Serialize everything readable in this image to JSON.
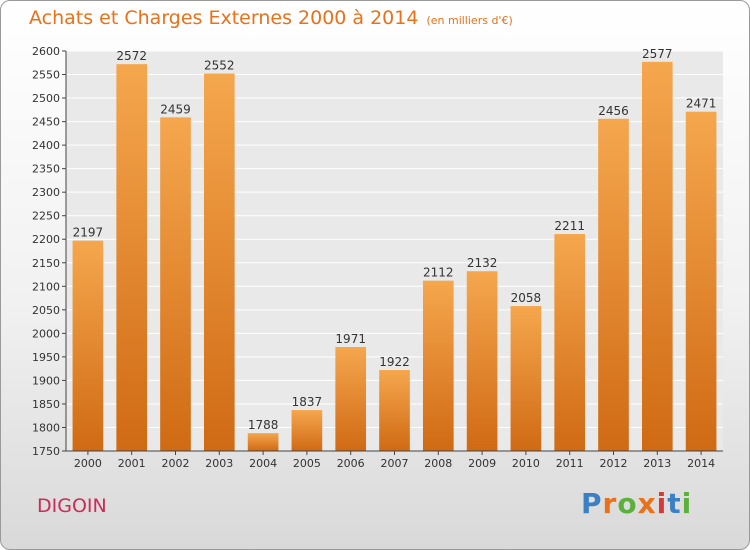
{
  "header": {
    "title": "Achats et Charges Externes 2000 à 2014",
    "subtitle": "(en milliers d'€)"
  },
  "footer": {
    "city": "DIGOIN",
    "logo": "Proxiti",
    "logo_letters": [
      "P",
      "r",
      "o",
      "x",
      "i",
      "t",
      "i"
    ],
    "logo_colors": [
      "#3b7fc4",
      "#e8711a",
      "#5bb13c",
      "#e8711a",
      "#d43a3a",
      "#3b7fc4",
      "#5bb13c"
    ]
  },
  "chart_data": {
    "type": "bar",
    "title": "Achats et Charges Externes 2000 à 2014",
    "subtitle": "(en milliers d'€)",
    "categories": [
      "2000",
      "2001",
      "2002",
      "2003",
      "2004",
      "2005",
      "2006",
      "2007",
      "2008",
      "2009",
      "2010",
      "2011",
      "2012",
      "2013",
      "2014"
    ],
    "values": [
      2197,
      2572,
      2459,
      2552,
      1788,
      1837,
      1971,
      1922,
      2112,
      2132,
      2058,
      2211,
      2456,
      2577,
      2471
    ],
    "ylim": [
      1750,
      2600
    ],
    "yticks": [
      1750,
      1800,
      1850,
      1900,
      1950,
      2000,
      2050,
      2100,
      2150,
      2200,
      2250,
      2300,
      2350,
      2400,
      2450,
      2500,
      2550,
      2600
    ],
    "grid": true,
    "bar_color_top": "#f5a74e",
    "bar_color_bottom": "#d06a14"
  }
}
